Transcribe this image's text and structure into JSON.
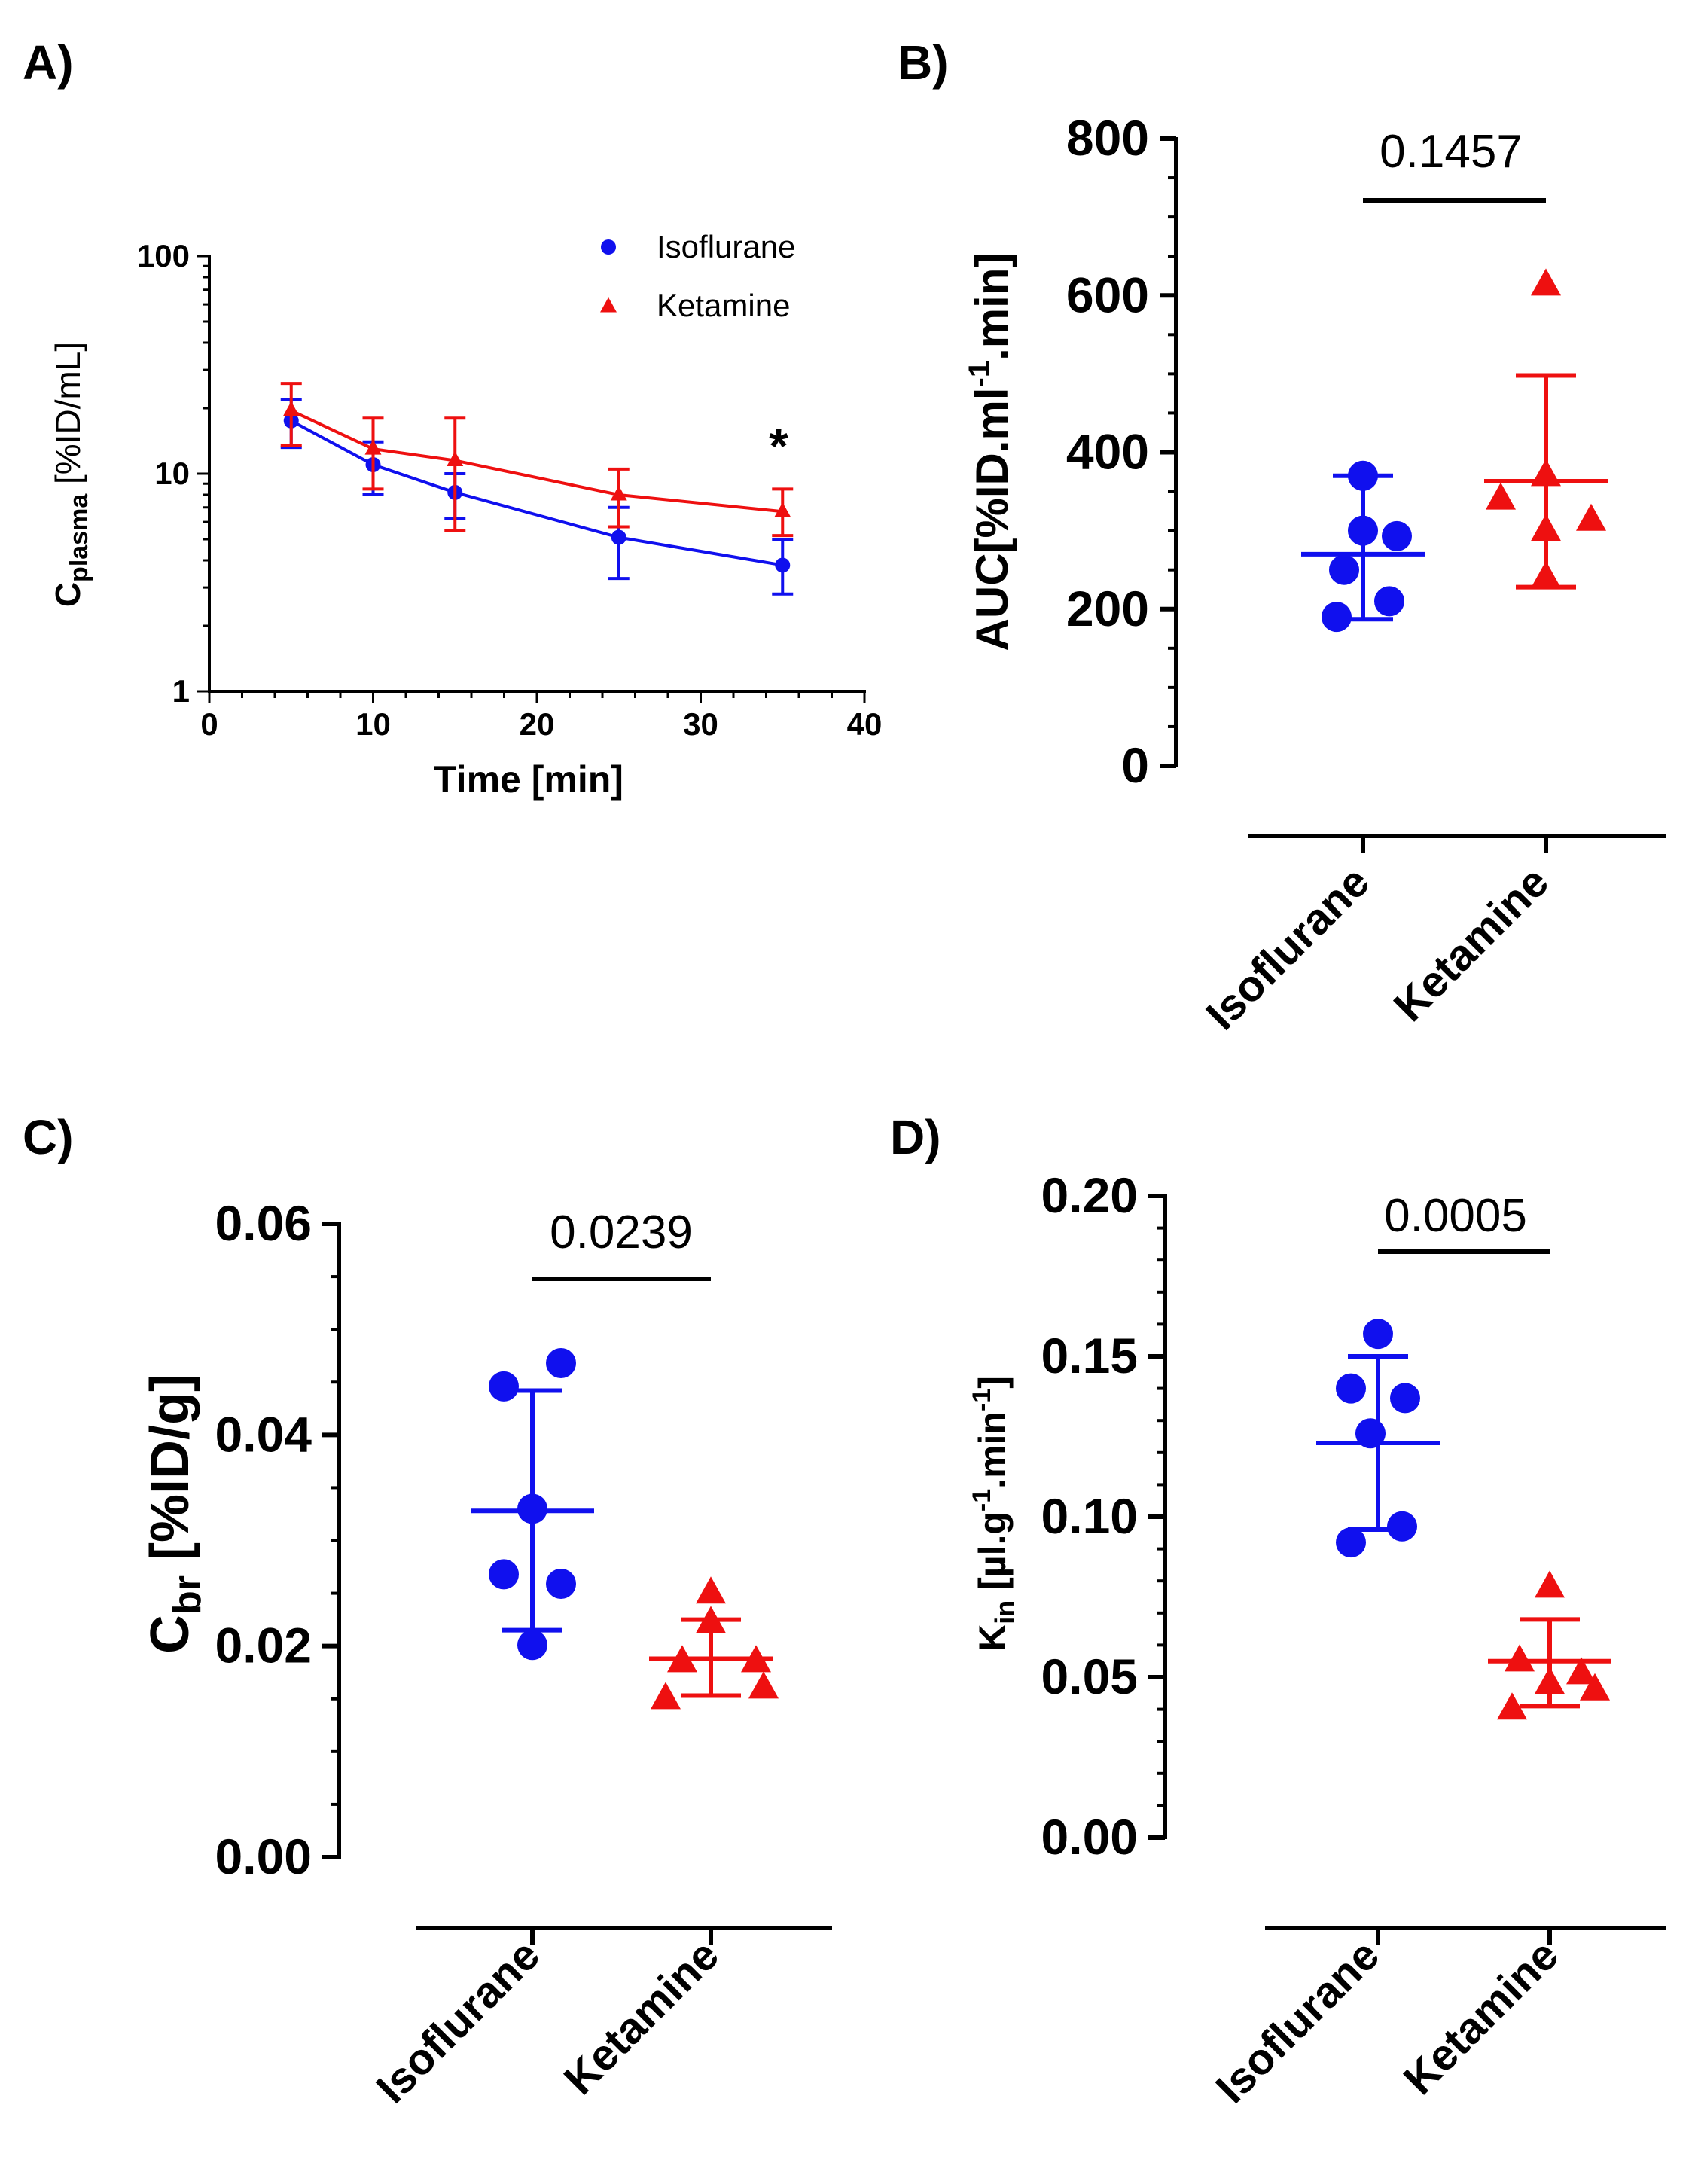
{
  "colors": {
    "isoflurane": "#1010ee",
    "ketamine": "#ee1010",
    "axis": "#000000"
  },
  "chart_data": [
    {
      "panel": "A)",
      "type": "line",
      "xlabel": "Time [min]",
      "ylabel_main": "C",
      "ylabel_sub": "plasma",
      "ylabel_rest": " [%ID/mL]",
      "yscale": "log",
      "xlim": [
        0,
        40
      ],
      "ylim": [
        1,
        100
      ],
      "xticks": [
        "0",
        "10",
        "20",
        "30",
        "40"
      ],
      "yticks": [
        "1",
        "10",
        "100"
      ],
      "annotation": "*",
      "series": [
        {
          "name": "Isoflurane",
          "marker": "circle",
          "x": [
            5,
            10,
            15,
            25,
            35
          ],
          "y": [
            17.5,
            11.0,
            8.2,
            5.1,
            3.8
          ],
          "err_low": [
            13.2,
            8.0,
            6.2,
            3.3,
            2.8
          ],
          "err_high": [
            22.0,
            14.0,
            10.0,
            7.0,
            5.0
          ]
        },
        {
          "name": "Ketamine",
          "marker": "triangle",
          "x": [
            5,
            10,
            15,
            25,
            35
          ],
          "y": [
            19.5,
            13.0,
            11.5,
            8.0,
            6.7
          ],
          "err_low": [
            13.5,
            8.5,
            5.5,
            5.7,
            5.2
          ],
          "err_high": [
            26.0,
            18.0,
            18.0,
            10.5,
            8.5
          ]
        }
      ]
    },
    {
      "panel": "B)",
      "type": "scatter",
      "ylabel_main": "AUC[%ID.ml",
      "ylabel_sup": "-1",
      "ylabel_rest": ".min]",
      "ylim": [
        0,
        800
      ],
      "yticks": [
        "0",
        "200",
        "400",
        "600",
        "800"
      ],
      "categories": [
        "Isoflurane",
        "Ketamine"
      ],
      "pvalue": "0.1457",
      "groups": [
        {
          "name": "Isoflurane",
          "marker": "circle",
          "values": [
            370,
            300,
            293,
            250,
            210,
            190
          ],
          "mean": 270,
          "sd_low": 187,
          "sd_high": 370
        },
        {
          "name": "Ketamine",
          "marker": "triangle",
          "values": [
            613,
            370,
            340,
            313,
            300,
            240
          ],
          "mean": 363,
          "sd_low": 228,
          "sd_high": 498
        }
      ]
    },
    {
      "panel": "C)",
      "type": "scatter",
      "ylabel_main": "C",
      "ylabel_sub": "br",
      "ylabel_rest": " [%ID/g]",
      "ylim": [
        0,
        0.06
      ],
      "yticks": [
        "0.00",
        "0.02",
        "0.04",
        "0.06"
      ],
      "categories": [
        "Isoflurane",
        "Ketamine"
      ],
      "pvalue": "0.0239",
      "groups": [
        {
          "name": "Isoflurane",
          "marker": "circle",
          "values": [
            0.0468,
            0.0446,
            0.033,
            0.0268,
            0.0259,
            0.0201
          ],
          "mean": 0.0328,
          "sd_low": 0.0215,
          "sd_high": 0.0442
        },
        {
          "name": "Ketamine",
          "marker": "triangle",
          "values": [
            0.025,
            0.0222,
            0.0185,
            0.0185,
            0.016,
            0.015
          ],
          "mean": 0.0188,
          "sd_low": 0.0153,
          "sd_high": 0.0225
        }
      ]
    },
    {
      "panel": "D)",
      "type": "scatter",
      "ylabel_main": "K",
      "ylabel_sub": "in",
      "ylabel_rest": " [µl.g",
      "ylabel_sup": "-1",
      "ylabel_rest2": ".min",
      "ylabel_sup2": "-1",
      "ylabel_end": "]",
      "ylim": [
        0,
        0.2
      ],
      "yticks": [
        "0.00",
        "0.05",
        "0.10",
        "0.15",
        "0.20"
      ],
      "categories": [
        "Isoflurane",
        "Ketamine"
      ],
      "pvalue": "0.0005",
      "groups": [
        {
          "name": "Isoflurane",
          "marker": "circle",
          "values": [
            0.157,
            0.14,
            0.137,
            0.126,
            0.097,
            0.092
          ],
          "mean": 0.123,
          "sd_low": 0.096,
          "sd_high": 0.15
        },
        {
          "name": "Ketamine",
          "marker": "triangle",
          "values": [
            0.078,
            0.055,
            0.051,
            0.048,
            0.046,
            0.04
          ],
          "mean": 0.055,
          "sd_low": 0.041,
          "sd_high": 0.068
        }
      ]
    }
  ]
}
